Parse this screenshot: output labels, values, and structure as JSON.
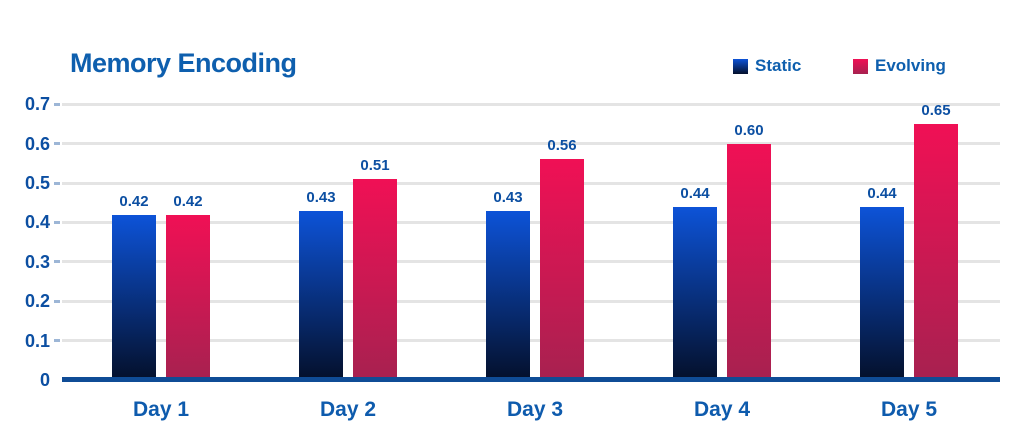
{
  "chart_data": {
    "type": "bar",
    "title": "Memory Encoding",
    "categories": [
      "Day 1",
      "Day 2",
      "Day 3",
      "Day 4",
      "Day 5"
    ],
    "series": [
      {
        "name": "Static",
        "values": [
          0.42,
          0.43,
          0.43,
          0.44,
          0.44
        ],
        "labels": [
          "0.42",
          "0.43",
          "0.43",
          "0.44",
          "0.44"
        ],
        "color_top": "#0d53d8",
        "color_bottom": "#04102b"
      },
      {
        "name": "Evolving",
        "values": [
          0.42,
          0.51,
          0.56,
          0.6,
          0.65
        ],
        "labels": [
          "0.42",
          "0.51",
          "0.56",
          "0.60",
          "0.65"
        ],
        "color_top": "#f01055",
        "color_bottom": "#a72150"
      }
    ],
    "y_ticks": [
      "0.7",
      "0.6",
      "0.5",
      "0.4",
      "0.3",
      "0.2",
      "0.1",
      "0"
    ],
    "ylim": [
      0,
      0.7
    ],
    "grid": true,
    "legend_position": "top-right",
    "xlabel": "",
    "ylabel": "",
    "colors": {
      "title_text": "#0e5fae",
      "axis_text": "#0c4fa2",
      "category_text": "#0e5bad",
      "grid_line": "#e4e4e4",
      "tick_mark": "#9db6d6",
      "axis_line": "#0f4c96"
    }
  }
}
